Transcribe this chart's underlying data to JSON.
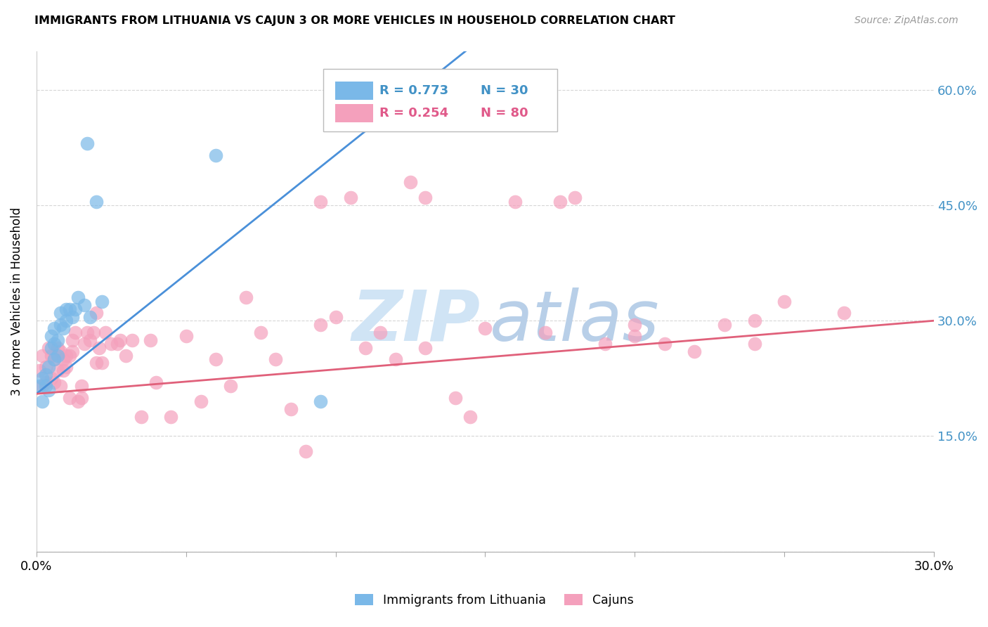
{
  "title": "IMMIGRANTS FROM LITHUANIA VS CAJUN 3 OR MORE VEHICLES IN HOUSEHOLD CORRELATION CHART",
  "source": "Source: ZipAtlas.com",
  "ylabel": "3 or more Vehicles in Household",
  "xlim": [
    0.0,
    0.3
  ],
  "ylim": [
    0.0,
    0.65
  ],
  "xticks": [
    0.0,
    0.05,
    0.1,
    0.15,
    0.2,
    0.25,
    0.3
  ],
  "xtick_labels": [
    "0.0%",
    "",
    "",
    "",
    "",
    "",
    "30.0%"
  ],
  "yticks": [
    0.0,
    0.15,
    0.3,
    0.45,
    0.6
  ],
  "ytick_labels_right": [
    "15.0%",
    "30.0%",
    "45.0%",
    "60.0%"
  ],
  "color_blue": "#7ab8e8",
  "color_pink": "#f4a0bc",
  "color_blue_text": "#4292c6",
  "color_pink_text": "#e05a8a",
  "color_line_blue": "#4a90d9",
  "color_line_pink": "#e0607a",
  "watermark_zip_color": "#d0e4f5",
  "watermark_atlas_color": "#b8cfe8",
  "blue_line_x0": 0.0,
  "blue_line_y0": 0.205,
  "blue_line_x1": 0.145,
  "blue_line_y1": 0.655,
  "pink_line_x0": 0.0,
  "pink_line_y0": 0.205,
  "pink_line_x1": 0.3,
  "pink_line_y1": 0.3,
  "blue_scatter_x": [
    0.001,
    0.002,
    0.002,
    0.003,
    0.003,
    0.004,
    0.004,
    0.005,
    0.005,
    0.006,
    0.006,
    0.006,
    0.007,
    0.007,
    0.008,
    0.008,
    0.009,
    0.01,
    0.01,
    0.011,
    0.012,
    0.013,
    0.014,
    0.016,
    0.017,
    0.018,
    0.02,
    0.022,
    0.06,
    0.095
  ],
  "blue_scatter_y": [
    0.215,
    0.225,
    0.195,
    0.23,
    0.215,
    0.24,
    0.21,
    0.265,
    0.28,
    0.25,
    0.27,
    0.29,
    0.255,
    0.275,
    0.295,
    0.31,
    0.29,
    0.3,
    0.315,
    0.315,
    0.305,
    0.315,
    0.33,
    0.32,
    0.53,
    0.305,
    0.455,
    0.325,
    0.515,
    0.195
  ],
  "pink_scatter_x": [
    0.001,
    0.002,
    0.002,
    0.003,
    0.003,
    0.004,
    0.005,
    0.005,
    0.006,
    0.006,
    0.007,
    0.007,
    0.008,
    0.008,
    0.009,
    0.009,
    0.01,
    0.01,
    0.011,
    0.011,
    0.012,
    0.012,
    0.013,
    0.014,
    0.015,
    0.015,
    0.016,
    0.017,
    0.018,
    0.019,
    0.02,
    0.02,
    0.021,
    0.022,
    0.023,
    0.025,
    0.027,
    0.028,
    0.03,
    0.032,
    0.035,
    0.038,
    0.04,
    0.045,
    0.05,
    0.055,
    0.06,
    0.065,
    0.07,
    0.075,
    0.08,
    0.085,
    0.09,
    0.095,
    0.1,
    0.105,
    0.11,
    0.115,
    0.12,
    0.125,
    0.13,
    0.14,
    0.15,
    0.16,
    0.17,
    0.175,
    0.18,
    0.19,
    0.2,
    0.21,
    0.22,
    0.23,
    0.24,
    0.25,
    0.095,
    0.13,
    0.145,
    0.2,
    0.24,
    0.27
  ],
  "pink_scatter_y": [
    0.235,
    0.215,
    0.255,
    0.22,
    0.24,
    0.265,
    0.255,
    0.225,
    0.22,
    0.25,
    0.235,
    0.265,
    0.215,
    0.26,
    0.25,
    0.235,
    0.24,
    0.255,
    0.255,
    0.2,
    0.275,
    0.26,
    0.285,
    0.195,
    0.215,
    0.2,
    0.27,
    0.285,
    0.275,
    0.285,
    0.31,
    0.245,
    0.265,
    0.245,
    0.285,
    0.27,
    0.27,
    0.275,
    0.255,
    0.275,
    0.175,
    0.275,
    0.22,
    0.175,
    0.28,
    0.195,
    0.25,
    0.215,
    0.33,
    0.285,
    0.25,
    0.185,
    0.13,
    0.295,
    0.305,
    0.46,
    0.265,
    0.285,
    0.25,
    0.48,
    0.265,
    0.2,
    0.29,
    0.455,
    0.285,
    0.455,
    0.46,
    0.27,
    0.28,
    0.27,
    0.26,
    0.295,
    0.27,
    0.325,
    0.455,
    0.46,
    0.175,
    0.295,
    0.3,
    0.31
  ]
}
